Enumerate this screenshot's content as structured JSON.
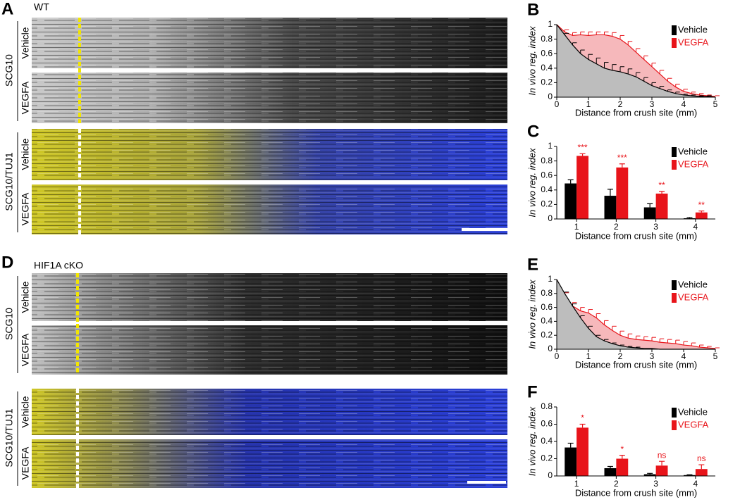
{
  "panels": [
    {
      "letter": "A",
      "genotype": "WT",
      "rows": [
        {
          "stain": "SCG10",
          "conditions": [
            "Vehicle",
            "VEGFA"
          ]
        },
        {
          "stain": "SCG10/TUJ1",
          "conditions": [
            "Vehicle",
            "VEGFA"
          ]
        }
      ]
    },
    {
      "letter": "D",
      "genotype": "HIF1A cKO",
      "rows": [
        {
          "stain": "SCG10",
          "conditions": [
            "Vehicle",
            "VEGFA"
          ]
        },
        {
          "stain": "SCG10/TUJ1",
          "conditions": [
            "Vehicle",
            "VEGFA"
          ]
        }
      ]
    }
  ],
  "chart_data": [
    {
      "type": "line",
      "panel": "B",
      "ylabel": "In vivo reg. index",
      "xlabel": "Distance from crush site (mm)",
      "x": [
        0,
        0.25,
        0.5,
        0.75,
        1,
        1.25,
        1.5,
        1.75,
        2,
        2.25,
        2.5,
        2.75,
        3,
        3.25,
        3.5,
        3.75,
        4,
        4.25,
        4.5,
        4.75,
        5
      ],
      "series": [
        {
          "name": "Vehicle",
          "color": "#000000",
          "fill": "#bdbdbd",
          "values": [
            1,
            0.86,
            0.72,
            0.6,
            0.52,
            0.46,
            0.4,
            0.37,
            0.35,
            0.32,
            0.28,
            0.22,
            0.16,
            0.12,
            0.08,
            0.05,
            0.03,
            0.02,
            0.01,
            0.01,
            0
          ],
          "errors": [
            0,
            0.02,
            0.03,
            0.05,
            0.07,
            0.08,
            0.08,
            0.08,
            0.07,
            0.07,
            0.06,
            0.05,
            0.04,
            0.03,
            0.02,
            0.02,
            0.01,
            0.01,
            0.01,
            0.01,
            0
          ]
        },
        {
          "name": "VEGFA",
          "color": "#e8141a",
          "fill": "#f6b8bb",
          "values": [
            1,
            0.9,
            0.85,
            0.86,
            0.85,
            0.86,
            0.86,
            0.84,
            0.8,
            0.72,
            0.62,
            0.52,
            0.42,
            0.32,
            0.22,
            0.14,
            0.08,
            0.05,
            0.03,
            0.02,
            0.01
          ],
          "errors": [
            0,
            0.03,
            0.04,
            0.04,
            0.05,
            0.04,
            0.04,
            0.05,
            0.05,
            0.05,
            0.05,
            0.05,
            0.05,
            0.05,
            0.04,
            0.04,
            0.03,
            0.02,
            0.02,
            0.01,
            0.01
          ]
        }
      ],
      "xlim": [
        0,
        5
      ],
      "xticks": [
        0,
        1,
        2,
        3,
        4,
        5
      ],
      "ylim": [
        0,
        1
      ],
      "yticks": [
        0,
        0.2,
        0.4,
        0.6,
        0.8,
        1
      ]
    },
    {
      "type": "bar",
      "panel": "C",
      "ylabel": "In vivo reg. index",
      "xlabel": "Distance from crush site (mm)",
      "categories": [
        "1",
        "2",
        "3",
        "4"
      ],
      "series": [
        {
          "name": "Vehicle",
          "color": "#000000",
          "values": [
            0.49,
            0.32,
            0.16,
            0.01
          ],
          "errors": [
            0.05,
            0.09,
            0.05,
            0.01
          ]
        },
        {
          "name": "VEGFA",
          "color": "#e8141a",
          "values": [
            0.87,
            0.71,
            0.35,
            0.09
          ],
          "errors": [
            0.03,
            0.05,
            0.03,
            0.02
          ]
        }
      ],
      "annotations": [
        "***",
        "***",
        "**",
        "**"
      ],
      "ylim": [
        0,
        1
      ],
      "yticks": [
        0,
        0.2,
        0.4,
        0.6,
        0.8,
        1
      ]
    },
    {
      "type": "line",
      "panel": "E",
      "ylabel": "In vivo reg. index",
      "xlabel": "Distance from crush site (mm)",
      "x": [
        0,
        0.25,
        0.5,
        0.75,
        1,
        1.25,
        1.5,
        1.75,
        2,
        2.25,
        2.5,
        2.75,
        3,
        3.25,
        3.5,
        3.75,
        4,
        4.25,
        4.5,
        4.75,
        5
      ],
      "series": [
        {
          "name": "Vehicle",
          "color": "#000000",
          "fill": "#bdbdbd",
          "values": [
            1,
            0.8,
            0.62,
            0.45,
            0.3,
            0.18,
            0.12,
            0.08,
            0.05,
            0.03,
            0.02,
            0.01,
            0.01,
            0,
            0,
            0,
            0,
            0,
            0,
            0,
            0
          ],
          "errors": [
            0,
            0.02,
            0.03,
            0.03,
            0.03,
            0.02,
            0.02,
            0.01,
            0.01,
            0.01,
            0.01,
            0,
            0,
            0,
            0,
            0,
            0,
            0,
            0,
            0,
            0
          ]
        },
        {
          "name": "VEGFA",
          "color": "#e8141a",
          "fill": "#f6b8bb",
          "values": [
            1,
            0.78,
            0.62,
            0.55,
            0.52,
            0.45,
            0.35,
            0.27,
            0.2,
            0.16,
            0.14,
            0.13,
            0.12,
            0.1,
            0.09,
            0.08,
            0.06,
            0.05,
            0.03,
            0.02,
            0.01
          ],
          "errors": [
            0,
            0.03,
            0.05,
            0.05,
            0.05,
            0.06,
            0.06,
            0.06,
            0.06,
            0.06,
            0.05,
            0.05,
            0.05,
            0.05,
            0.05,
            0.05,
            0.05,
            0.04,
            0.03,
            0.02,
            0.01
          ]
        }
      ],
      "xlim": [
        0,
        5
      ],
      "xticks": [
        0,
        1,
        2,
        3,
        4,
        5
      ],
      "ylim": [
        0,
        1
      ],
      "yticks": [
        0,
        0.2,
        0.4,
        0.6,
        0.8,
        1
      ]
    },
    {
      "type": "bar",
      "panel": "F",
      "ylabel": "In vivo reg. index",
      "xlabel": "Distance from crush site (mm)",
      "categories": [
        "1",
        "2",
        "3",
        "4"
      ],
      "series": [
        {
          "name": "Vehicle",
          "color": "#000000",
          "values": [
            0.33,
            0.09,
            0.02,
            0.01
          ],
          "errors": [
            0.05,
            0.02,
            0.01,
            0.005
          ]
        },
        {
          "name": "VEGFA",
          "color": "#e8141a",
          "values": [
            0.56,
            0.2,
            0.12,
            0.08
          ],
          "errors": [
            0.04,
            0.04,
            0.05,
            0.05
          ]
        }
      ],
      "annotations": [
        "*",
        "*",
        "ns",
        "ns"
      ],
      "ylim": [
        0,
        0.8
      ],
      "yticks": [
        0,
        0.2,
        0.4,
        0.6,
        0.8
      ]
    }
  ]
}
